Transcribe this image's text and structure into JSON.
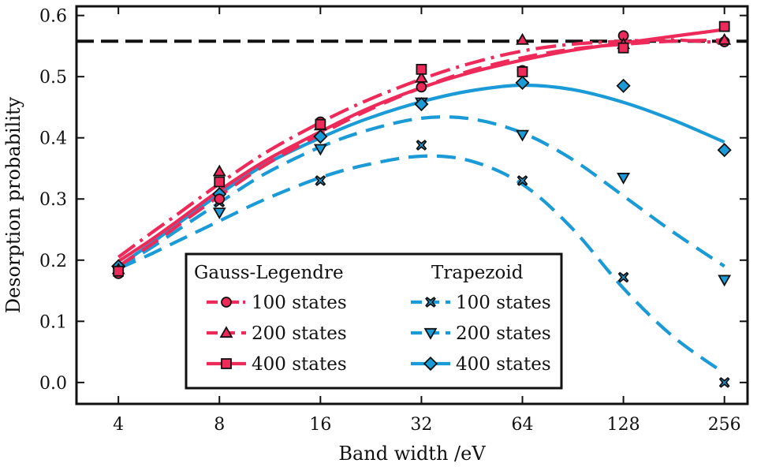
{
  "chart_data": {
    "type": "line",
    "title": "",
    "xlabel": "Band width /eV",
    "ylabel": "Desorption probability",
    "x_scale": "log2",
    "x_ticks": [
      4,
      8,
      16,
      32,
      64,
      128,
      256
    ],
    "x_tick_labels": [
      "4",
      "8",
      "16",
      "32",
      "64",
      "128",
      "256"
    ],
    "xlim": [
      3,
      300
    ],
    "y_ticks": [
      0.0,
      0.1,
      0.2,
      0.3,
      0.4,
      0.5,
      0.6
    ],
    "y_tick_labels": [
      "0.0",
      "0.1",
      "0.2",
      "0.3",
      "0.4",
      "0.5",
      "0.6"
    ],
    "ylim": [
      -0.035,
      0.615
    ],
    "grid": false,
    "reference_line": {
      "y": 0.558,
      "style": "dashed",
      "color": "#111111"
    },
    "legend": {
      "placement": "bottom-center",
      "group_headers": [
        "Gauss-Legendre",
        "Trapezoid"
      ]
    },
    "series": [
      {
        "name": "100 states",
        "group": "Gauss-Legendre",
        "color": "#ee2a5a",
        "line": "dashdot",
        "marker": "circle",
        "x": [
          4,
          8,
          16,
          32,
          64,
          128,
          256
        ],
        "y": [
          0.178,
          0.3,
          0.426,
          0.483,
          0.51,
          0.567,
          0.557
        ],
        "fit_x": [
          4,
          5,
          6,
          8,
          11,
          16,
          22,
          32,
          45,
          64,
          90,
          128,
          180,
          256
        ],
        "fit_y": [
          0.205,
          0.244,
          0.275,
          0.325,
          0.376,
          0.425,
          0.461,
          0.496,
          0.522,
          0.542,
          0.553,
          0.558,
          0.56,
          0.555
        ]
      },
      {
        "name": "200 states",
        "group": "Gauss-Legendre",
        "color": "#ee2a5a",
        "line": "dashed",
        "marker": "triangle-up",
        "x": [
          4,
          8,
          16,
          32,
          64,
          128,
          256
        ],
        "y": [
          0.185,
          0.345,
          0.42,
          0.498,
          0.56,
          0.553,
          0.56
        ],
        "fit_x": [
          4,
          5,
          6,
          8,
          11,
          16,
          22,
          32,
          45,
          64,
          90,
          128,
          180,
          256
        ],
        "fit_y": [
          0.19,
          0.225,
          0.256,
          0.305,
          0.356,
          0.406,
          0.444,
          0.482,
          0.51,
          0.531,
          0.545,
          0.553,
          0.558,
          0.56
        ]
      },
      {
        "name": "400 states",
        "group": "Gauss-Legendre",
        "color": "#ee2a5a",
        "line": "solid",
        "marker": "square",
        "x": [
          4,
          8,
          16,
          32,
          64,
          128,
          256
        ],
        "y": [
          0.182,
          0.328,
          0.422,
          0.512,
          0.508,
          0.547,
          0.582
        ],
        "fit_x": [
          4,
          5,
          6,
          8,
          11,
          16,
          22,
          32,
          45,
          64,
          90,
          128,
          180,
          256
        ],
        "fit_y": [
          0.198,
          0.233,
          0.264,
          0.314,
          0.363,
          0.41,
          0.447,
          0.482,
          0.507,
          0.527,
          0.543,
          0.555,
          0.566,
          0.577
        ]
      },
      {
        "name": "100 states",
        "group": "Trapezoid",
        "color": "#1a9ad6",
        "line": "dashed",
        "marker": "x-filled",
        "x": [
          4,
          8,
          16,
          32,
          64,
          128,
          256
        ],
        "y": [
          0.18,
          0.295,
          0.33,
          0.388,
          0.33,
          0.172,
          0.0
        ],
        "fit_x": [
          4,
          5,
          6,
          8,
          11,
          16,
          22,
          32,
          45,
          64,
          90,
          128,
          180,
          256
        ],
        "fit_y": [
          0.186,
          0.21,
          0.231,
          0.264,
          0.3,
          0.335,
          0.356,
          0.37,
          0.362,
          0.324,
          0.252,
          0.154,
          0.075,
          0.015
        ]
      },
      {
        "name": "200 states",
        "group": "Trapezoid",
        "color": "#1a9ad6",
        "line": "dashed",
        "marker": "triangle-down",
        "x": [
          4,
          8,
          16,
          32,
          64,
          128,
          256
        ],
        "y": [
          0.182,
          0.278,
          0.382,
          0.458,
          0.405,
          0.335,
          0.168
        ],
        "fit_x": [
          4,
          5,
          6,
          8,
          11,
          16,
          22,
          32,
          45,
          64,
          90,
          128,
          180,
          256
        ],
        "fit_y": [
          0.188,
          0.22,
          0.249,
          0.294,
          0.342,
          0.385,
          0.412,
          0.432,
          0.431,
          0.408,
          0.365,
          0.305,
          0.246,
          0.19
        ]
      },
      {
        "name": "400 states",
        "group": "Trapezoid",
        "color": "#1a9ad6",
        "line": "solid",
        "marker": "diamond",
        "x": [
          4,
          8,
          16,
          32,
          64,
          128,
          256
        ],
        "y": [
          0.19,
          0.308,
          0.402,
          0.455,
          0.49,
          0.485,
          0.38
        ],
        "fit_x": [
          4,
          5,
          6,
          8,
          11,
          16,
          22,
          32,
          45,
          64,
          90,
          128,
          180,
          256
        ],
        "fit_y": [
          0.19,
          0.227,
          0.259,
          0.308,
          0.357,
          0.4,
          0.431,
          0.459,
          0.477,
          0.486,
          0.479,
          0.458,
          0.429,
          0.393
        ]
      }
    ]
  }
}
